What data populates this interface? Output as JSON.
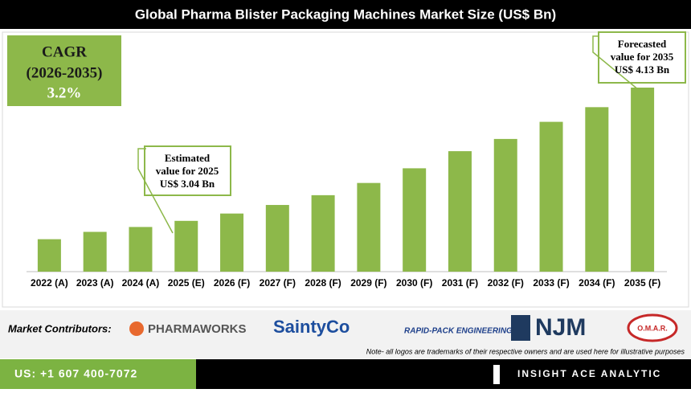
{
  "chart_data": {
    "type": "bar",
    "title": "Global Pharma Blister Packaging Machines Market Size (US$ Bn)",
    "categories": [
      "2022 (A)",
      "2023 (A)",
      "2024 (A)",
      "2025 (E)",
      "2026 (F)",
      "2027 (F)",
      "2028 (F)",
      "2029 (F)",
      "2030 (F)",
      "2031 (F)",
      "2032 (F)",
      "2033 (F)",
      "2034 (F)",
      "2035 (F)"
    ],
    "values": [
      2.89,
      2.95,
      2.99,
      3.04,
      3.1,
      3.17,
      3.25,
      3.35,
      3.47,
      3.61,
      3.71,
      3.85,
      3.97,
      4.13
    ],
    "color": "#8db84a",
    "annotations": [
      {
        "lines": [
          "Estimated",
          "value for 2025",
          "US$ 3.04 Bn"
        ]
      },
      {
        "lines": [
          "Forecasted",
          "value for 2035",
          "US$ 4.13 Bn"
        ]
      }
    ],
    "cagr": [
      "CAGR",
      "(2026-2035)",
      "3.2%"
    ]
  },
  "page": {
    "contributors_label": "Market Contributors:",
    "logos": [
      "PHARMAWORKS",
      "SaintyCo",
      "RAPID-PACK ENGINEERING",
      "NJM",
      "O.M.A.R."
    ],
    "note": "Note- all logos are trademarks of their respective owners and are used here for illustrative purposes",
    "phone": "US: +1 607 400-7072",
    "brand": "INSIGHT ACE ANALYTIC"
  }
}
